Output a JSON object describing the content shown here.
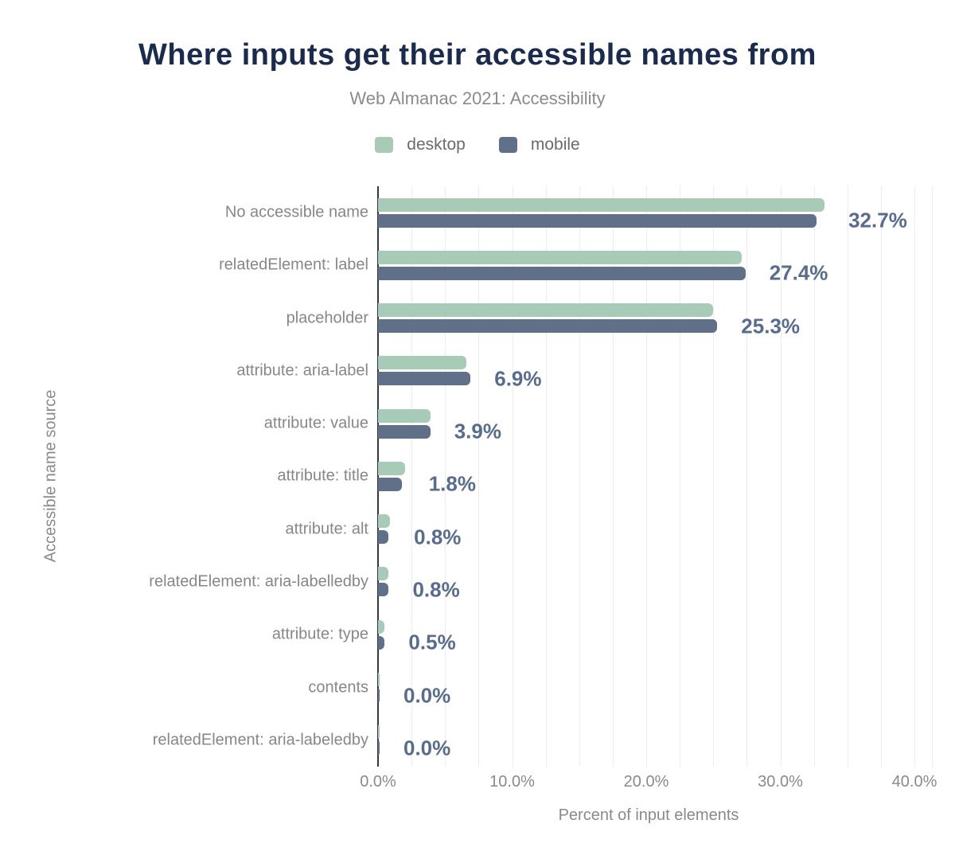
{
  "title": "Where inputs get their accessible names from",
  "subtitle": "Web Almanac 2021: Accessibility",
  "colors": {
    "title": "#1a2b4d",
    "subtitle": "#8b8b8b",
    "axis_line": "#2e3a4c",
    "gridline": "#ededed",
    "category_label": "#878787",
    "tick_label": "#8a8a8a",
    "value_label": "#586c8c",
    "desktop": "#a8cbb7",
    "mobile": "#5f7088"
  },
  "chart_data": {
    "type": "bar",
    "orientation": "horizontal",
    "title": "Where inputs get their accessible names from",
    "subtitle": "Web Almanac 2021: Accessibility",
    "xlabel": "Percent of input elements",
    "ylabel": "Accessible name source",
    "xlim": [
      0,
      41.3
    ],
    "grid": true,
    "gridline_step": 2.5,
    "legend_position": "top",
    "x_ticks": [
      {
        "value": 0,
        "label": "0.0%"
      },
      {
        "value": 10,
        "label": "10.0%"
      },
      {
        "value": 20,
        "label": "20.0%"
      },
      {
        "value": 30,
        "label": "30.0%"
      },
      {
        "value": 40,
        "label": "40.0%"
      }
    ],
    "categories": [
      "No accessible name",
      "relatedElement: label",
      "placeholder",
      "attribute: aria-label",
      "attribute: value",
      "attribute: title",
      "attribute: alt",
      "relatedElement: aria-labelledby",
      "attribute: type",
      "contents",
      "relatedElement: aria-labeledby"
    ],
    "series": [
      {
        "name": "desktop",
        "color": "#a8cbb7",
        "values": [
          33.3,
          27.1,
          25.0,
          6.6,
          3.9,
          2.0,
          0.9,
          0.8,
          0.5,
          0.0,
          0.0
        ]
      },
      {
        "name": "mobile",
        "color": "#5f7088",
        "values": [
          32.7,
          27.4,
          25.3,
          6.9,
          3.9,
          1.8,
          0.8,
          0.8,
          0.5,
          0.0,
          0.0
        ]
      }
    ],
    "data_labels": [
      "32.7%",
      "27.4%",
      "25.3%",
      "6.9%",
      "3.9%",
      "1.8%",
      "0.8%",
      "0.8%",
      "0.5%",
      "0.0%",
      "0.0%"
    ]
  }
}
